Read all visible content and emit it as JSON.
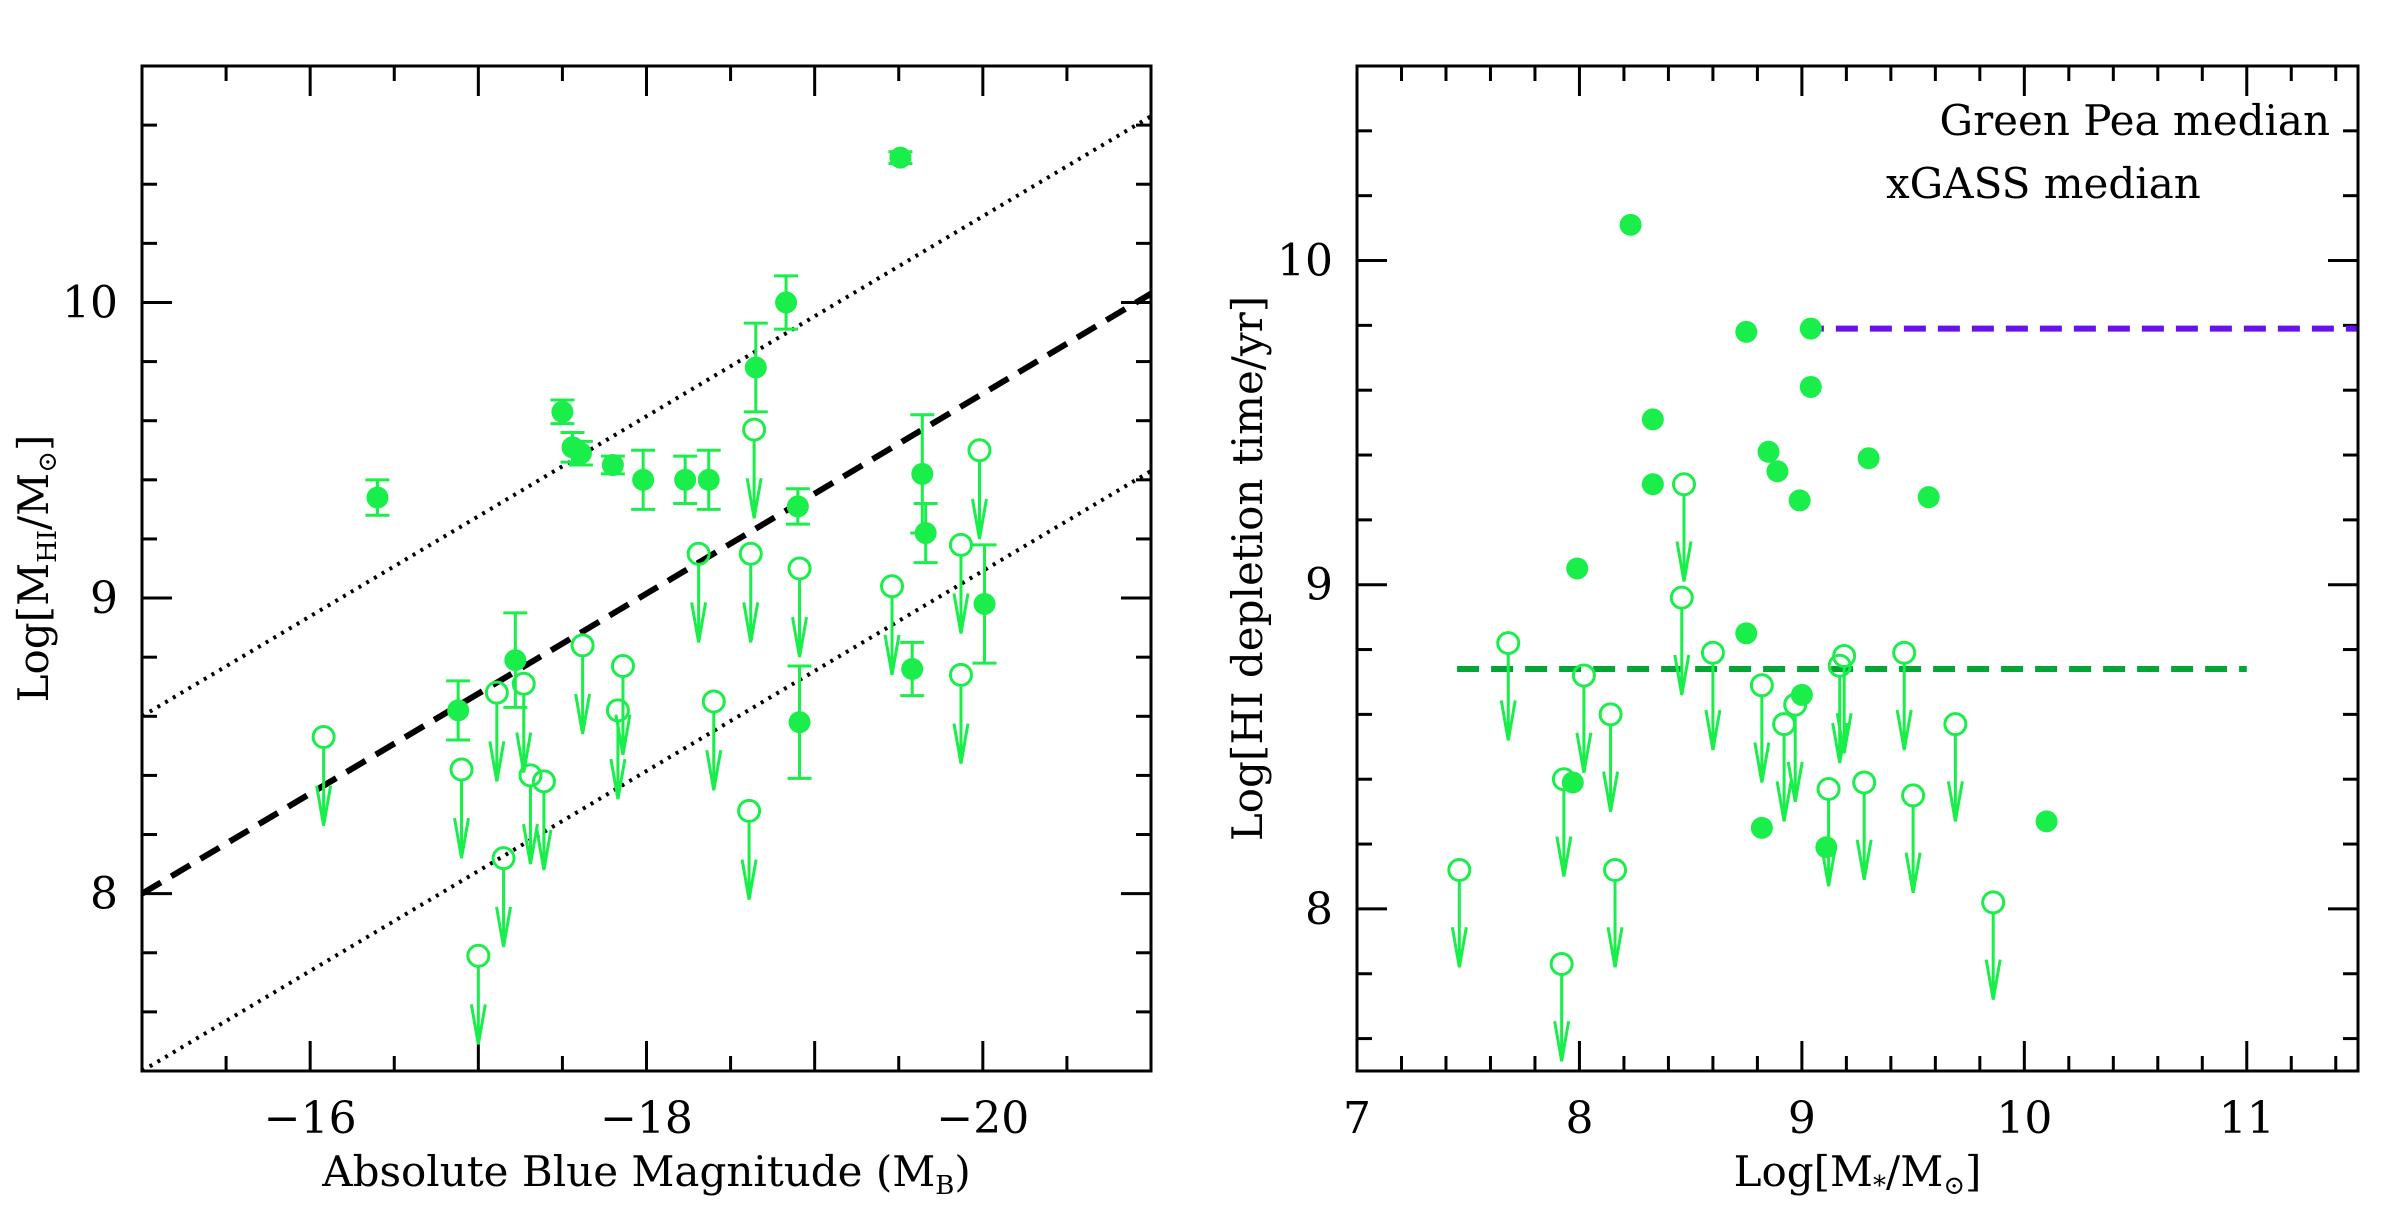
{
  "colors": {
    "points": "#1aee4a",
    "axes": "#000000",
    "gp_median": "#00a833",
    "xgass_median": "#6611ee"
  },
  "chart_data": [
    {
      "type": "scatter",
      "xlabel_parts": [
        {
          "t": "Absolute Blue Magnitude (M"
        },
        {
          "t": "B",
          "sub": true
        },
        {
          "t": ")"
        }
      ],
      "ylabel_parts": [
        {
          "t": "Log[M"
        },
        {
          "t": "HI",
          "sub": true
        },
        {
          "t": "/M"
        },
        {
          "t": "⊙",
          "sub": true
        },
        {
          "t": "]"
        }
      ],
      "xlim": [
        -15,
        -21
      ],
      "ylim": [
        7.4,
        10.8
      ],
      "x_ticks": [
        -16,
        -18,
        -20
      ],
      "x_tick_labels": [
        "−16",
        "−18",
        "−20"
      ],
      "x_minor_step": 0.5,
      "y_ticks": [
        8,
        9,
        10
      ],
      "y_tick_labels": [
        "8",
        "9",
        "10"
      ],
      "y_minor_step": 0.2,
      "lines": [
        {
          "style": "dashed",
          "color": "#000000",
          "x": [
            -15,
            -21
          ],
          "y": [
            8.0,
            10.03
          ]
        },
        {
          "style": "dotted",
          "color": "#000000",
          "x": [
            -15,
            -21
          ],
          "y": [
            8.6,
            10.63
          ]
        },
        {
          "style": "dotted",
          "color": "#000000",
          "x": [
            -15,
            -21
          ],
          "y": [
            7.4,
            9.43
          ]
        }
      ],
      "detections": [
        {
          "x": -16.4,
          "y": 9.34,
          "err": 0.06
        },
        {
          "x": -17.5,
          "y": 9.63,
          "err": 0.04
        },
        {
          "x": -17.56,
          "y": 9.51,
          "err": 0.05
        },
        {
          "x": -17.61,
          "y": 9.49,
          "err": 0.04
        },
        {
          "x": -17.8,
          "y": 9.45,
          "err": 0.03
        },
        {
          "x": -17.98,
          "y": 9.4,
          "err": 0.1
        },
        {
          "x": -18.23,
          "y": 9.4,
          "err": 0.08
        },
        {
          "x": -18.37,
          "y": 9.4,
          "err": 0.1
        },
        {
          "x": -18.65,
          "y": 9.78,
          "err": 0.15
        },
        {
          "x": -18.83,
          "y": 10.0,
          "err": 0.09
        },
        {
          "x": -19.51,
          "y": 10.49,
          "err": 0.02
        },
        {
          "x": -18.9,
          "y": 9.31,
          "err": 0.06
        },
        {
          "x": -19.64,
          "y": 9.42,
          "err": 0.2
        },
        {
          "x": -19.66,
          "y": 9.22,
          "err": 0.1
        },
        {
          "x": -20.01,
          "y": 8.98,
          "err": 0.2
        },
        {
          "x": -19.58,
          "y": 8.76,
          "err": 0.09
        },
        {
          "x": -18.91,
          "y": 8.58,
          "err": 0.19
        },
        {
          "x": -17.22,
          "y": 8.79,
          "err": 0.16
        },
        {
          "x": -16.88,
          "y": 8.62,
          "err": 0.1
        }
      ],
      "upper_limits": [
        {
          "x": -16.08,
          "y": 8.53
        },
        {
          "x": -16.9,
          "y": 8.42
        },
        {
          "x": -17.11,
          "y": 8.68
        },
        {
          "x": -17.27,
          "y": 8.71
        },
        {
          "x": -17.15,
          "y": 8.12
        },
        {
          "x": -17.31,
          "y": 8.4
        },
        {
          "x": -17.39,
          "y": 8.38
        },
        {
          "x": -17.0,
          "y": 7.79
        },
        {
          "x": -17.62,
          "y": 8.84
        },
        {
          "x": -17.86,
          "y": 8.77
        },
        {
          "x": -17.83,
          "y": 8.62
        },
        {
          "x": -18.31,
          "y": 9.15
        },
        {
          "x": -18.4,
          "y": 8.65
        },
        {
          "x": -18.64,
          "y": 9.57
        },
        {
          "x": -18.62,
          "y": 9.15
        },
        {
          "x": -18.61,
          "y": 8.28
        },
        {
          "x": -18.91,
          "y": 9.1
        },
        {
          "x": -19.46,
          "y": 9.04
        },
        {
          "x": -19.87,
          "y": 9.18
        },
        {
          "x": -19.98,
          "y": 9.5
        },
        {
          "x": -19.87,
          "y": 8.74
        }
      ],
      "limit_arrow_length": 0.3
    },
    {
      "type": "scatter",
      "xlabel_parts": [
        {
          "t": "Log[M"
        },
        {
          "t": "*",
          "sub": true
        },
        {
          "t": "/M"
        },
        {
          "t": "⊙",
          "sub": true
        },
        {
          "t": "]"
        }
      ],
      "ylabel_parts": [
        {
          "t": "Log[HI depletion time/yr]"
        }
      ],
      "xlim": [
        7,
        11.5
      ],
      "ylim": [
        7.5,
        10.6
      ],
      "x_ticks": [
        7,
        8,
        9,
        10,
        11
      ],
      "x_tick_labels": [
        "7",
        "8",
        "9",
        "10",
        "11"
      ],
      "x_minor_step": 0.2,
      "y_ticks": [
        8,
        9,
        10
      ],
      "y_tick_labels": [
        "8",
        "9",
        "10"
      ],
      "y_minor_step": 0.2,
      "legend": {
        "position": "top-right",
        "entries": [
          "Green Pea median",
          "xGASS median"
        ]
      },
      "lines": [
        {
          "name": "Green Pea median",
          "style": "dashed",
          "color": "#00a833",
          "x": [
            7.45,
            11.0
          ],
          "y": [
            8.74,
            8.74
          ]
        },
        {
          "name": "xGASS median",
          "style": "dashed",
          "color": "#6611ee",
          "x": [
            9.0,
            11.5
          ],
          "y": [
            9.79,
            9.79
          ]
        }
      ],
      "detections": [
        {
          "x": 8.23,
          "y": 10.11
        },
        {
          "x": 8.75,
          "y": 9.78
        },
        {
          "x": 9.04,
          "y": 9.79
        },
        {
          "x": 9.04,
          "y": 9.61
        },
        {
          "x": 8.33,
          "y": 9.51
        },
        {
          "x": 8.33,
          "y": 9.31
        },
        {
          "x": 8.85,
          "y": 9.41
        },
        {
          "x": 8.89,
          "y": 9.35
        },
        {
          "x": 8.99,
          "y": 9.26
        },
        {
          "x": 9.3,
          "y": 9.39
        },
        {
          "x": 9.57,
          "y": 9.27
        },
        {
          "x": 7.99,
          "y": 9.05
        },
        {
          "x": 8.75,
          "y": 8.85
        },
        {
          "x": 9.0,
          "y": 8.66
        },
        {
          "x": 7.97,
          "y": 8.39
        },
        {
          "x": 8.82,
          "y": 8.25
        },
        {
          "x": 9.11,
          "y": 8.19
        },
        {
          "x": 10.1,
          "y": 8.27
        }
      ],
      "upper_limits": [
        {
          "x": 8.47,
          "y": 9.31
        },
        {
          "x": 8.46,
          "y": 8.96
        },
        {
          "x": 7.68,
          "y": 8.82
        },
        {
          "x": 8.02,
          "y": 8.72
        },
        {
          "x": 8.6,
          "y": 8.79
        },
        {
          "x": 8.82,
          "y": 8.69
        },
        {
          "x": 8.97,
          "y": 8.63
        },
        {
          "x": 8.92,
          "y": 8.57
        },
        {
          "x": 9.19,
          "y": 8.78
        },
        {
          "x": 9.17,
          "y": 8.75
        },
        {
          "x": 9.46,
          "y": 8.79
        },
        {
          "x": 9.69,
          "y": 8.57
        },
        {
          "x": 8.14,
          "y": 8.6
        },
        {
          "x": 7.93,
          "y": 8.4
        },
        {
          "x": 9.12,
          "y": 8.37
        },
        {
          "x": 9.28,
          "y": 8.39
        },
        {
          "x": 9.5,
          "y": 8.35
        },
        {
          "x": 7.46,
          "y": 8.12
        },
        {
          "x": 8.16,
          "y": 8.12
        },
        {
          "x": 7.92,
          "y": 7.83
        },
        {
          "x": 9.86,
          "y": 8.02
        }
      ],
      "limit_arrow_length": 0.3
    }
  ]
}
